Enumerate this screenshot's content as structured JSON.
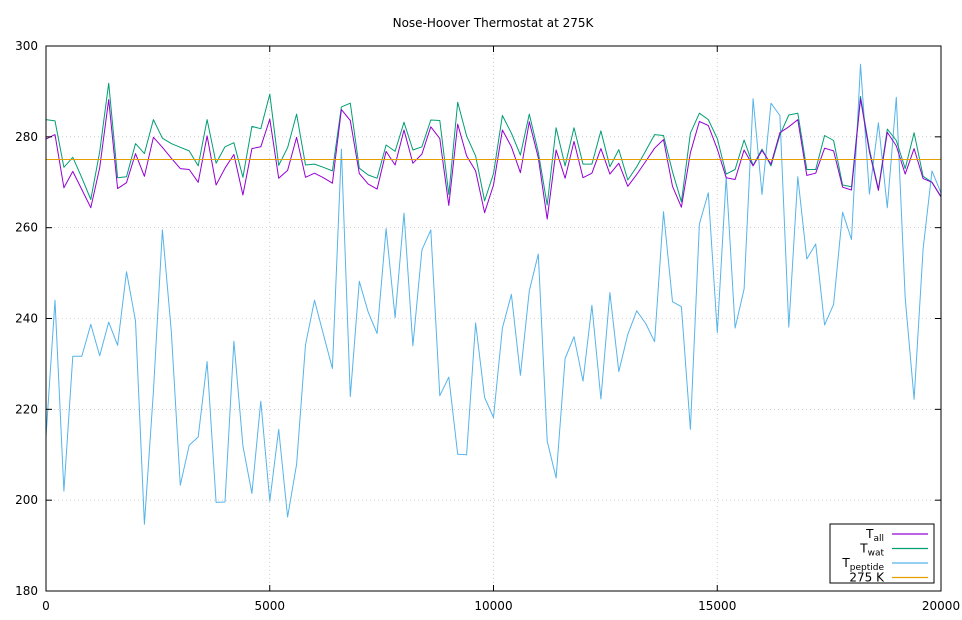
{
  "chart_data": {
    "type": "line",
    "title": "Nose-Hoover Thermostat at 275K",
    "xlabel": "",
    "ylabel": "",
    "xlim": [
      0,
      20000
    ],
    "ylim": [
      180,
      300
    ],
    "xticks": [
      0,
      5000,
      10000,
      15000,
      20000
    ],
    "yticks": [
      180,
      200,
      220,
      240,
      260,
      280,
      300
    ],
    "grid": true,
    "legend_position": "bottom-right",
    "legend": [
      {
        "main": "T",
        "sub": "all",
        "color": "#9400d3"
      },
      {
        "main": "T",
        "sub": "wat",
        "color": "#009e73"
      },
      {
        "main": "T",
        "sub": "peptide",
        "color": "#56b4e9"
      },
      {
        "main": "275 K",
        "sub": "",
        "color": "#e69f00"
      }
    ],
    "x": [
      0,
      200,
      400,
      600,
      800,
      1000,
      1200,
      1400,
      1600,
      1800,
      2000,
      2200,
      2400,
      2600,
      2800,
      3000,
      3200,
      3400,
      3600,
      3800,
      4000,
      4200,
      4400,
      4600,
      4800,
      5000,
      5200,
      5400,
      5600,
      5800,
      6000,
      6200,
      6400,
      6600,
      6800,
      7000,
      7200,
      7400,
      7600,
      7800,
      8000,
      8200,
      8400,
      8600,
      8800,
      9000,
      9200,
      9400,
      9600,
      9800,
      10000,
      10200,
      10400,
      10600,
      10800,
      11000,
      11200,
      11400,
      11600,
      11800,
      12000,
      12200,
      12400,
      12600,
      12800,
      13000,
      13200,
      13400,
      13600,
      13800,
      14000,
      14200,
      14400,
      14600,
      14800,
      15000,
      15200,
      15400,
      15600,
      15800,
      16000,
      16200,
      16400,
      16600,
      16800,
      17000,
      17200,
      17400,
      17600,
      17800,
      18000,
      18200,
      18400,
      18600,
      18800,
      19000,
      19200,
      19400,
      19600,
      19800,
      20000
    ],
    "series": [
      {
        "name": "T_all",
        "color": "#9400d3",
        "values": [
          279.5,
          280.5,
          268.8,
          272.4,
          268.4,
          264.4,
          273.2,
          288.2,
          268.6,
          269.9,
          276.3,
          271.3,
          279.9,
          277.7,
          275.3,
          273.0,
          272.8,
          270.0,
          280.2,
          269.4,
          273.1,
          276.1,
          267.2,
          277.4,
          277.8,
          283.9,
          270.9,
          272.6,
          279.9,
          271.1,
          272.0,
          271.0,
          269.8,
          286.0,
          283.6,
          271.9,
          269.6,
          268.5,
          276.8,
          273.8,
          281.5,
          274.2,
          276.2,
          282.2,
          279.6,
          264.9,
          282.8,
          275.8,
          272.5,
          263.3,
          269.4,
          281.5,
          277.8,
          272.1,
          283.3,
          275.4,
          261.9,
          277.1,
          270.9,
          279.0,
          271.0,
          272.0,
          277.4,
          271.8,
          274.2,
          269.1,
          271.7,
          274.6,
          277.5,
          279.4,
          269.1,
          264.5,
          276.5,
          283.4,
          282.5,
          277.3,
          271.0,
          270.6,
          277.1,
          273.6,
          277.0,
          274.0,
          280.9,
          282.2,
          283.8,
          271.5,
          272.0,
          277.5,
          276.9,
          268.9,
          268.3,
          288.4,
          276.7,
          268.2,
          281.0,
          278.0,
          271.8,
          277.4,
          270.8,
          270.0,
          266.8
        ]
      },
      {
        "name": "T_wat",
        "color": "#009e73",
        "values": [
          283.8,
          283.5,
          273.3,
          275.5,
          271.0,
          266.2,
          276.7,
          291.8,
          271.0,
          271.2,
          278.5,
          276.3,
          283.8,
          279.7,
          278.5,
          277.7,
          276.9,
          273.6,
          283.8,
          274.2,
          277.8,
          278.7,
          271.1,
          282.3,
          281.8,
          289.4,
          273.7,
          277.6,
          285.0,
          273.8,
          274.0,
          273.3,
          272.5,
          286.6,
          287.4,
          273.1,
          271.6,
          270.9,
          278.2,
          276.8,
          283.2,
          277.1,
          277.8,
          283.7,
          283.6,
          267.3,
          287.6,
          280.2,
          275.8,
          265.9,
          271.9,
          284.7,
          280.8,
          276.0,
          285.0,
          276.6,
          265.0,
          282.0,
          273.6,
          282.0,
          274.0,
          274.0,
          281.3,
          273.4,
          277.2,
          270.5,
          273.4,
          276.9,
          280.5,
          280.3,
          272.3,
          265.7,
          280.8,
          285.2,
          283.8,
          279.6,
          271.8,
          272.8,
          279.3,
          273.7,
          277.3,
          273.6,
          280.4,
          284.8,
          285.2,
          272.8,
          272.8,
          280.3,
          279.2,
          269.4,
          269.0,
          288.9,
          277.3,
          268.5,
          281.7,
          279.2,
          273.0,
          280.9,
          271.3,
          270.0,
          266.8
        ]
      },
      {
        "name": "T_peptide",
        "color": "#56b4e9",
        "values": [
          214.0,
          244.0,
          202.0,
          231.7,
          231.7,
          238.7,
          231.8,
          239.2,
          234.1,
          250.3,
          239.5,
          194.7,
          223.9,
          259.5,
          237.2,
          203.3,
          212.1,
          213.9,
          230.5,
          199.5,
          199.6,
          235.0,
          212.0,
          201.5,
          221.8,
          199.8,
          215.6,
          196.3,
          207.9,
          234.2,
          244.0,
          236.5,
          229.0,
          277.3,
          222.8,
          248.2,
          241.4,
          236.7,
          259.8,
          240.2,
          263.2,
          234.0,
          255.1,
          259.5,
          223.0,
          227.1,
          210.1,
          210.0,
          239.0,
          222.6,
          218.2,
          237.9,
          245.3,
          227.5,
          246.1,
          254.2,
          213.0,
          204.9,
          231.2,
          236.0,
          226.2,
          242.9,
          222.3,
          245.7,
          228.3,
          236.5,
          241.7,
          238.9,
          234.9,
          263.5,
          243.7,
          242.6,
          215.6,
          260.8,
          267.7,
          236.9,
          271.2,
          237.9,
          246.5,
          288.4,
          267.3,
          287.4,
          284.7,
          238.1,
          271.2,
          253.1,
          256.4,
          238.6,
          243.1,
          263.4,
          257.4,
          296.0,
          267.4,
          283.1,
          264.4,
          288.7,
          244.5,
          222.2,
          255.3,
          272.5,
          267.6
        ]
      },
      {
        "name": "275 K",
        "color": "#e69f00",
        "values": [
          275,
          275,
          275,
          275,
          275,
          275,
          275,
          275,
          275,
          275,
          275,
          275,
          275,
          275,
          275,
          275,
          275,
          275,
          275,
          275,
          275,
          275,
          275,
          275,
          275,
          275,
          275,
          275,
          275,
          275,
          275,
          275,
          275,
          275,
          275,
          275,
          275,
          275,
          275,
          275,
          275,
          275,
          275,
          275,
          275,
          275,
          275,
          275,
          275,
          275,
          275,
          275,
          275,
          275,
          275,
          275,
          275,
          275,
          275,
          275,
          275,
          275,
          275,
          275,
          275,
          275,
          275,
          275,
          275,
          275,
          275,
          275,
          275,
          275,
          275,
          275,
          275,
          275,
          275,
          275,
          275,
          275,
          275,
          275,
          275,
          275,
          275,
          275,
          275,
          275,
          275,
          275,
          275,
          275,
          275,
          275,
          275,
          275,
          275,
          275,
          275
        ]
      }
    ]
  }
}
